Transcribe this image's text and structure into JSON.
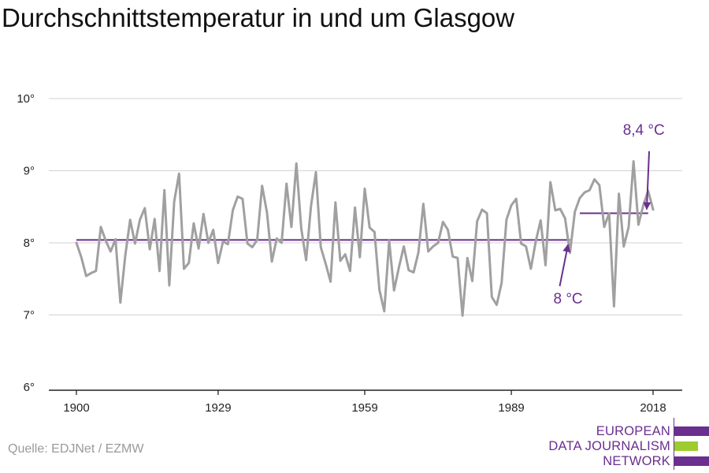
{
  "title": "Durchschnittstemperatur in und um Glasgow",
  "source": "Quelle: EDJNet / EZMW",
  "logo": {
    "lines": [
      "EUROPEAN",
      "DATA JOURNALISM",
      "NETWORK"
    ],
    "colors": [
      "#6a2f8f",
      "#9ccc2e",
      "#6a2f8f"
    ]
  },
  "colors": {
    "series": "#a0a0a0",
    "average": "#6a2f8f",
    "grid": "#d9d9d9",
    "axis": "#222222"
  },
  "chart_data": {
    "type": "line",
    "title": "Durchschnittstemperatur in und um Glasgow",
    "xlabel": "",
    "ylabel": "",
    "xlim": [
      1900,
      2018
    ],
    "ylim": [
      6,
      10
    ],
    "x_ticks": [
      {
        "value": 1900,
        "label": "1900"
      },
      {
        "value": 1929,
        "label": "1929"
      },
      {
        "value": 1959,
        "label": "1959"
      },
      {
        "value": 1989,
        "label": "1989"
      },
      {
        "value": 2018,
        "label": "2018"
      }
    ],
    "y_ticks": [
      {
        "value": 6,
        "label": "6°"
      },
      {
        "value": 7,
        "label": "7°"
      },
      {
        "value": 8,
        "label": "8°"
      },
      {
        "value": 9,
        "label": "9°"
      },
      {
        "value": 10,
        "label": "10°"
      }
    ],
    "grid": true,
    "series": [
      {
        "x": [
          1900,
          1901,
          1902,
          1903,
          1904,
          1905,
          1906,
          1907,
          1908,
          1909,
          1910,
          1911,
          1912,
          1913,
          1914,
          1915,
          1916,
          1917,
          1918,
          1919,
          1920,
          1921,
          1922,
          1923,
          1924,
          1925,
          1926,
          1927,
          1928,
          1929,
          1930,
          1931,
          1932,
          1933,
          1934,
          1935,
          1936,
          1937,
          1938,
          1939,
          1940,
          1941,
          1942,
          1943,
          1944,
          1945,
          1946,
          1947,
          1948,
          1949,
          1950,
          1951,
          1952,
          1953,
          1954,
          1955,
          1956,
          1957,
          1958,
          1959,
          1960,
          1961,
          1962,
          1963,
          1964,
          1965,
          1966,
          1967,
          1968,
          1969,
          1970,
          1971,
          1972,
          1973,
          1974,
          1975,
          1976,
          1977,
          1978,
          1979,
          1980,
          1981,
          1982,
          1983,
          1984,
          1985,
          1986,
          1987,
          1988,
          1989,
          1990,
          1991,
          1992,
          1993,
          1994,
          1995,
          1996,
          1997,
          1998,
          1999,
          2000,
          2001,
          2002,
          2003,
          2004,
          2005,
          2006,
          2007,
          2008,
          2009,
          2010,
          2011,
          2012,
          2013,
          2014,
          2015,
          2016,
          2017,
          2018
        ],
        "values": [
          8.0,
          7.8,
          7.54,
          7.58,
          7.61,
          8.22,
          8.03,
          7.88,
          8.05,
          7.17,
          7.82,
          8.32,
          7.99,
          8.32,
          8.48,
          7.91,
          8.33,
          7.61,
          8.73,
          7.41,
          8.57,
          8.96,
          7.64,
          7.72,
          8.27,
          7.92,
          8.4,
          8.0,
          8.18,
          7.72,
          8.02,
          7.98,
          8.45,
          8.64,
          8.61,
          7.99,
          7.94,
          8.04,
          8.79,
          8.42,
          7.74,
          8.06,
          8.0,
          8.82,
          8.22,
          9.1,
          8.2,
          7.76,
          8.51,
          8.98,
          7.94,
          7.71,
          7.46,
          8.56,
          7.75,
          7.84,
          7.61,
          8.49,
          7.8,
          8.75,
          8.21,
          8.15,
          7.35,
          7.05,
          8.03,
          7.34,
          7.66,
          7.95,
          7.62,
          7.59,
          7.87,
          8.54,
          7.88,
          7.95,
          8.0,
          8.29,
          8.18,
          7.81,
          7.79,
          6.99,
          7.79,
          7.47,
          8.3,
          8.46,
          8.41,
          7.25,
          7.14,
          7.44,
          8.32,
          8.52,
          8.61,
          7.99,
          7.95,
          7.64,
          8.02,
          8.31,
          7.69,
          8.84,
          8.45,
          8.47,
          8.34,
          7.86,
          8.43,
          8.62,
          8.7,
          8.73,
          8.88,
          8.8,
          8.22,
          8.41,
          7.12,
          8.68,
          7.95,
          8.22,
          9.13,
          8.25,
          8.52,
          8.72,
          8.46
        ]
      }
    ],
    "reference_lines": [
      {
        "value": 8.04,
        "from": 1900,
        "to": 2001,
        "label": "8 °C"
      },
      {
        "value": 8.41,
        "from": 2003,
        "to": 2017,
        "label": "8,4 °C"
      }
    ]
  }
}
